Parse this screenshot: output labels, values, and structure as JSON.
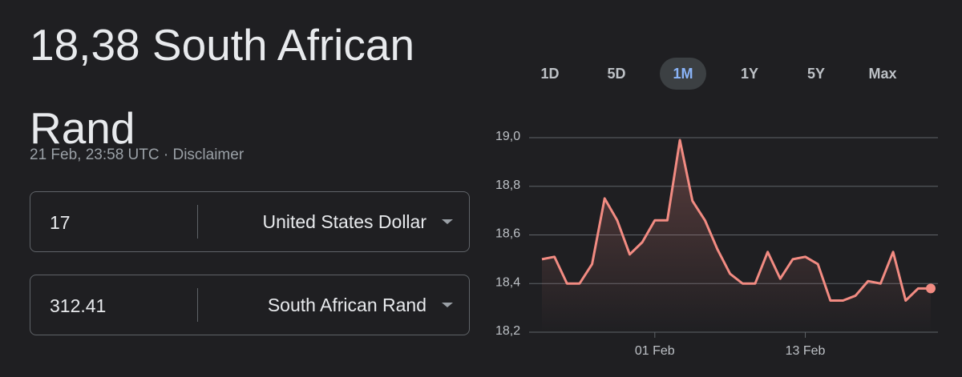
{
  "header": {
    "title": "18,38 South African Rand",
    "subtitle": "21 Feb, 23:58 UTC · Disclaimer"
  },
  "converter": [
    {
      "amount": "17",
      "currency": "United States Dollar"
    },
    {
      "amount": "312.41",
      "currency": "South African Rand"
    }
  ],
  "ranges": {
    "options": [
      "1D",
      "5D",
      "1M",
      "1Y",
      "5Y",
      "Max"
    ],
    "selected": 2
  },
  "chart_data": {
    "type": "line",
    "color": "#f28b82",
    "categories": [
      null,
      null,
      null,
      null,
      null,
      null,
      null,
      null,
      null,
      "01 Feb",
      null,
      null,
      null,
      null,
      null,
      null,
      null,
      null,
      null,
      null,
      null,
      "13 Feb",
      null,
      null,
      null,
      null,
      null,
      null,
      null,
      null,
      null,
      null
    ],
    "values": [
      18.5,
      18.51,
      18.4,
      18.4,
      18.48,
      18.75,
      18.66,
      18.52,
      18.57,
      18.66,
      18.66,
      18.99,
      18.74,
      18.66,
      18.54,
      18.44,
      18.4,
      18.4,
      18.53,
      18.42,
      18.5,
      18.51,
      18.48,
      18.33,
      18.33,
      18.35,
      18.41,
      18.4,
      18.53,
      18.33,
      18.38,
      18.38
    ],
    "ylim": [
      18.2,
      19.0
    ],
    "yticks": [
      {
        "value": 18.2,
        "label": "18,2"
      },
      {
        "value": 18.4,
        "label": "18,4"
      },
      {
        "value": 18.6,
        "label": "18,6"
      },
      {
        "value": 18.8,
        "label": "18,8"
      },
      {
        "value": 19.0,
        "label": "19,0"
      }
    ],
    "grid": true
  }
}
